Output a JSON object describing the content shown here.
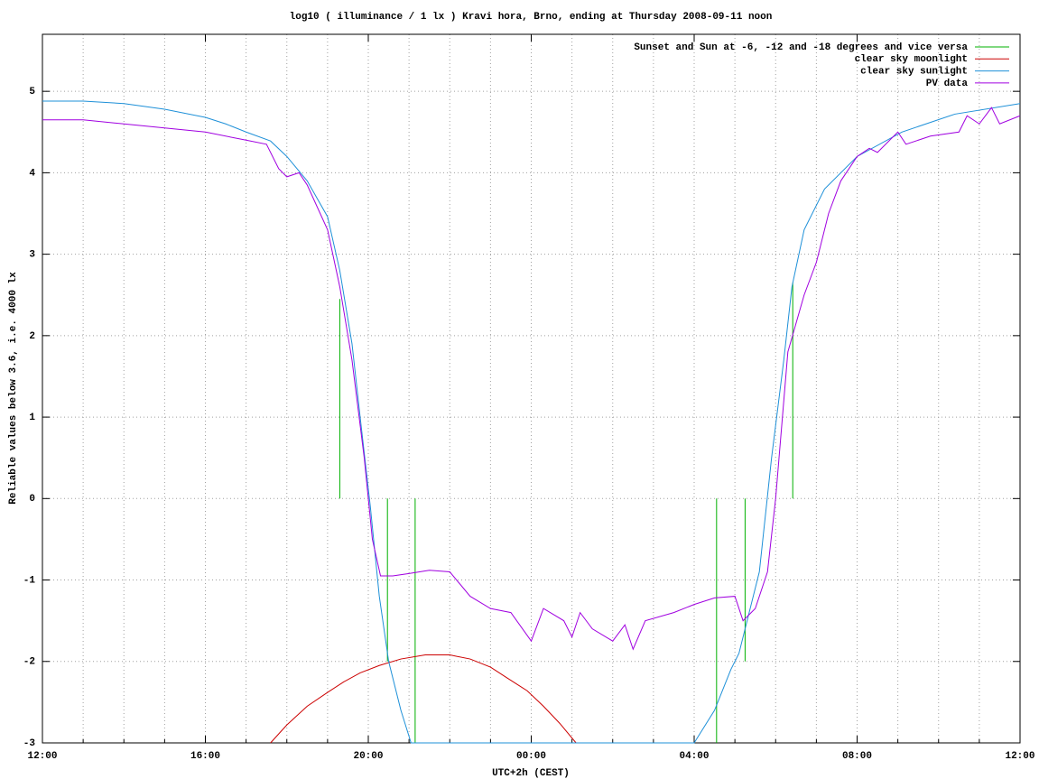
{
  "chart_data": {
    "type": "line",
    "title": "log10 ( illuminance / 1 lx ) Kravi hora, Brno, ending at Thursday 2008-09-11 noon",
    "xlabel": "UTC+2h (CEST)",
    "ylabel": "Reliable values below 3.6, i.e. 4000 lx",
    "xlim": [
      0,
      24
    ],
    "ylim": [
      -3,
      5.7
    ],
    "xticks": [
      {
        "value": 0,
        "label": "12:00"
      },
      {
        "value": 4,
        "label": "16:00"
      },
      {
        "value": 8,
        "label": "20:00"
      },
      {
        "value": 12,
        "label": "00:00"
      },
      {
        "value": 16,
        "label": "04:00"
      },
      {
        "value": 20,
        "label": "08:00"
      },
      {
        "value": 24,
        "label": "12:00"
      }
    ],
    "xminorticks": [
      1,
      2,
      3,
      5,
      6,
      7,
      9,
      10,
      11,
      13,
      14,
      15,
      17,
      18,
      19,
      21,
      22,
      23
    ],
    "yticks": [
      -3,
      -2,
      -1,
      0,
      1,
      2,
      3,
      4,
      5
    ],
    "grid": true,
    "legend": "top-right",
    "series": [
      {
        "name": "Sunset and Sun at -6, -12 and -18 degrees and vice versa",
        "color": "#00b000",
        "x": [
          7.3,
          7.3,
          7.3,
          8.47,
          8.47,
          8.47,
          9.15,
          9.15,
          9.15,
          16.55,
          16.55,
          16.55,
          17.25,
          17.25,
          17.25,
          18.42,
          18.42
        ],
        "values": [
          0,
          2.45,
          null,
          0,
          -2,
          null,
          0,
          -3,
          null,
          0,
          -3,
          null,
          0,
          -2,
          null,
          0,
          2.65
        ]
      },
      {
        "name": "clear sky moonlight",
        "color": "#cc0000",
        "x": [
          5.6,
          6.0,
          6.5,
          7.0,
          7.4,
          7.8,
          8.27,
          8.8,
          9.4,
          10.0,
          10.5,
          11.0,
          11.4,
          11.9,
          12.3,
          12.7,
          13.1
        ],
        "values": [
          -3,
          -2.78,
          -2.55,
          -2.38,
          -2.25,
          -2.14,
          -2.05,
          -1.97,
          -1.92,
          -1.92,
          -1.97,
          -2.07,
          -2.2,
          -2.36,
          -2.55,
          -2.76,
          -3
        ]
      },
      {
        "name": "clear sky sunlight",
        "color": "#1e90d8",
        "x": [
          0,
          1,
          2,
          3,
          4,
          4.5,
          5.0,
          5.6,
          6.0,
          6.5,
          7.0,
          7.3,
          7.6,
          7.8,
          8.05,
          8.27,
          8.5,
          8.8,
          9.05,
          16.0,
          16.5,
          16.9,
          17.1,
          17.6,
          17.9,
          18.2,
          18.4,
          18.7,
          19.2,
          20.0,
          21.1,
          22.4,
          24
        ],
        "values": [
          4.88,
          4.88,
          4.85,
          4.78,
          4.68,
          4.6,
          4.5,
          4.39,
          4.2,
          3.9,
          3.46,
          2.8,
          1.9,
          1.0,
          -0.1,
          -1.2,
          -2.0,
          -2.6,
          -3,
          -3,
          -2.6,
          -2.1,
          -1.9,
          -0.9,
          0.5,
          1.7,
          2.6,
          3.3,
          3.8,
          4.2,
          4.5,
          4.72,
          4.85
        ]
      },
      {
        "name": "PV data",
        "color": "#a000e0",
        "x": [
          0,
          1,
          2,
          3,
          4,
          5,
          5.5,
          5.8,
          6,
          6.3,
          6.5,
          7,
          7.3,
          7.6,
          7.9,
          8.1,
          8.3,
          8.6,
          9,
          9.5,
          10,
          10.5,
          11,
          11.5,
          12,
          12.3,
          12.8,
          13,
          13.2,
          13.5,
          14,
          14.3,
          14.5,
          14.8,
          15.5,
          16,
          16.5,
          17,
          17.2,
          17.5,
          17.8,
          18,
          18.3,
          18.7,
          19,
          19.3,
          19.6,
          20,
          20.3,
          20.5,
          21,
          21.2,
          21.8,
          22.5,
          22.7,
          23,
          23.3,
          23.5,
          24
        ],
        "values": [
          4.65,
          4.65,
          4.6,
          4.55,
          4.5,
          4.4,
          4.35,
          4.05,
          3.95,
          4.0,
          3.85,
          3.3,
          2.6,
          1.7,
          0.5,
          -0.5,
          -0.95,
          -0.95,
          -0.92,
          -0.88,
          -0.9,
          -1.2,
          -1.35,
          -1.4,
          -1.75,
          -1.35,
          -1.5,
          -1.7,
          -1.4,
          -1.6,
          -1.75,
          -1.55,
          -1.85,
          -1.5,
          -1.4,
          -1.3,
          -1.22,
          -1.2,
          -1.5,
          -1.35,
          -0.9,
          0,
          1.8,
          2.5,
          2.9,
          3.5,
          3.9,
          4.2,
          4.3,
          4.25,
          4.5,
          4.35,
          4.45,
          4.5,
          4.7,
          4.6,
          4.8,
          4.6,
          4.7
        ]
      }
    ]
  }
}
